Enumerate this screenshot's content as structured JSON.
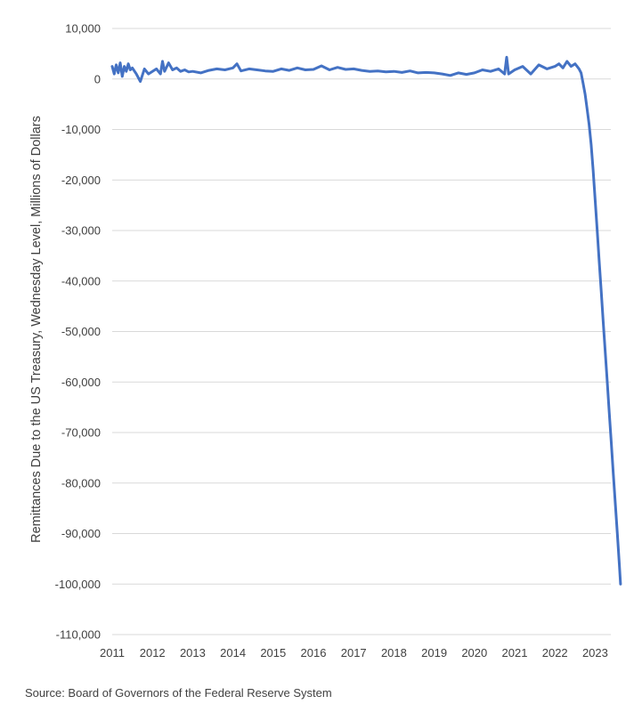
{
  "chart_data": {
    "type": "line",
    "title": "",
    "xlabel": "",
    "ylabel": "Remittances Due to the US Treasury, Wednesday Level, Millions of Dollars",
    "ylim": [
      -110000,
      10000
    ],
    "xlim": [
      2011,
      2023.75
    ],
    "y_ticks": [
      10000,
      0,
      -10000,
      -20000,
      -30000,
      -40000,
      -50000,
      -60000,
      -70000,
      -80000,
      -90000,
      -100000,
      -110000
    ],
    "y_tick_labels": [
      "10,000",
      "0",
      "-10,000",
      "-20,000",
      "-30,000",
      "-40,000",
      "-50,000",
      "-60,000",
      "-70,000",
      "-80,000",
      "-90,000",
      "-100,000",
      "-110,000"
    ],
    "x_tick_labels": [
      "2011",
      "2012",
      "2013",
      "2014",
      "2015",
      "2016",
      "2017",
      "2018",
      "2019",
      "2020",
      "2021",
      "2022",
      "2023"
    ],
    "grid": "horizontal",
    "legend": "none",
    "line_color": "#4472C4",
    "series": [
      {
        "x": [
          2011.0,
          2011.05,
          2011.1,
          2011.15,
          2011.2,
          2011.25,
          2011.3,
          2011.35,
          2011.4,
          2011.45,
          2011.5,
          2011.6,
          2011.7,
          2011.8,
          2011.9,
          2012.0,
          2012.1,
          2012.2,
          2012.25,
          2012.3,
          2012.4,
          2012.5,
          2012.6,
          2012.7,
          2012.8,
          2012.9,
          2013.0,
          2013.2,
          2013.4,
          2013.6,
          2013.8,
          2014.0,
          2014.1,
          2014.2,
          2014.4,
          2014.6,
          2014.8,
          2015.0,
          2015.2,
          2015.4,
          2015.6,
          2015.8,
          2016.0,
          2016.2,
          2016.4,
          2016.6,
          2016.8,
          2017.0,
          2017.2,
          2017.4,
          2017.6,
          2017.8,
          2018.0,
          2018.2,
          2018.4,
          2018.6,
          2018.8,
          2019.0,
          2019.2,
          2019.4,
          2019.6,
          2019.8,
          2020.0,
          2020.2,
          2020.4,
          2020.6,
          2020.75,
          2020.8,
          2020.85,
          2021.0,
          2021.2,
          2021.4,
          2021.6,
          2021.8,
          2022.0,
          2022.1,
          2022.2,
          2022.3,
          2022.4,
          2022.5,
          2022.55,
          2022.6,
          2022.65,
          2022.7,
          2022.75,
          2022.8,
          2022.85,
          2022.9,
          2022.95,
          2023.0,
          2023.05,
          2023.1,
          2023.15,
          2023.2,
          2023.25,
          2023.3,
          2023.35,
          2023.4,
          2023.45,
          2023.5,
          2023.55,
          2023.6,
          2023.63
        ],
        "y": [
          2500,
          1000,
          2800,
          1200,
          3200,
          500,
          2500,
          1500,
          3000,
          1800,
          2200,
          1000,
          -500,
          2000,
          1000,
          1500,
          2000,
          1000,
          3500,
          1500,
          3200,
          1800,
          2200,
          1500,
          1800,
          1400,
          1500,
          1200,
          1700,
          2000,
          1800,
          2200,
          3000,
          1600,
          2000,
          1800,
          1600,
          1500,
          2000,
          1700,
          2200,
          1800,
          1900,
          2600,
          1800,
          2300,
          1900,
          2000,
          1700,
          1500,
          1600,
          1400,
          1500,
          1300,
          1600,
          1200,
          1300,
          1200,
          1000,
          700,
          1200,
          900,
          1200,
          1800,
          1500,
          2000,
          1000,
          4300,
          1000,
          1800,
          2500,
          1000,
          2800,
          2000,
          2500,
          3000,
          2200,
          3500,
          2500,
          3000,
          2500,
          2000,
          1200,
          -800,
          -3000,
          -6000,
          -9000,
          -13000,
          -18000,
          -24000,
          -30000,
          -36000,
          -42000,
          -48000,
          -54000,
          -60000,
          -66000,
          -72000,
          -78000,
          -84000,
          -90000,
          -96000,
          -100000
        ]
      }
    ]
  },
  "source_text": "Source: Board of Governors of the Federal Reserve System"
}
